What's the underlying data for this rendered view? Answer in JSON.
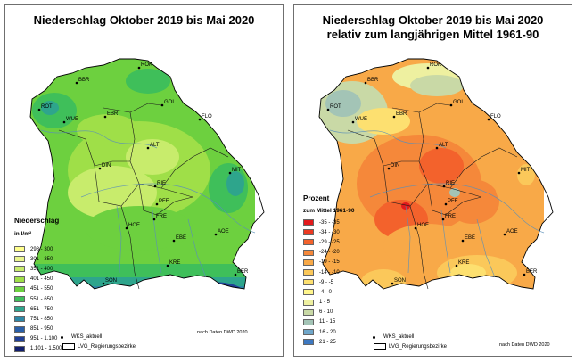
{
  "left_map": {
    "title": "Niederschlag Oktober 2019 bis Mai 2020",
    "legend_title": "Niederschlag",
    "legend_unit": "in l/m²",
    "legend": [
      {
        "label": "298 - 300",
        "color": "#ffff8c"
      },
      {
        "label": "301 - 350",
        "color": "#e9f58c"
      },
      {
        "label": "351 - 400",
        "color": "#c8ec6c"
      },
      {
        "label": "401 - 450",
        "color": "#9fdf48"
      },
      {
        "label": "451 - 550",
        "color": "#6dd03f"
      },
      {
        "label": "551 - 650",
        "color": "#3fbf5a"
      },
      {
        "label": "651 - 750",
        "color": "#2ea58c"
      },
      {
        "label": "751 - 850",
        "color": "#2d87a6"
      },
      {
        "label": "851 - 950",
        "color": "#2a5fa8"
      },
      {
        "label": "951 - 1.100",
        "color": "#213f97"
      },
      {
        "label": "1.101 - 1.500",
        "color": "#121f6e"
      }
    ],
    "station_label": "WKS_aktuell",
    "boundary_label": "LVG_Regierungsbezirke",
    "credit": "nach Daten DWD 2020"
  },
  "right_map": {
    "title_line1": "Niederschlag Oktober 2019 bis Mai 2020",
    "title_line2": "relativ zum langjährigen Mittel 1961-90",
    "legend_title": "Prozent",
    "legend_unit": "zum Mittel 1961-90",
    "legend": [
      {
        "label": "-35 - -35",
        "color": "#e31a1c"
      },
      {
        "label": "-34 - -30",
        "color": "#ec3a22"
      },
      {
        "label": "-29 - -25",
        "color": "#f3622c"
      },
      {
        "label": "-24 - -20",
        "color": "#f5883a"
      },
      {
        "label": "-19 - -15",
        "color": "#f8a948"
      },
      {
        "label": "-14 - -10",
        "color": "#fbc85a"
      },
      {
        "label": "-9 - -5",
        "color": "#fde070"
      },
      {
        "label": "-4 - 0",
        "color": "#fff58c"
      },
      {
        "label": "1 - 5",
        "color": "#eef0a0"
      },
      {
        "label": "6 - 10",
        "color": "#c9d9a6"
      },
      {
        "label": "11 - 15",
        "color": "#a3c4b6"
      },
      {
        "label": "16 - 20",
        "color": "#6fa6c9"
      },
      {
        "label": "21 - 25",
        "color": "#3d78c0"
      }
    ],
    "station_label": "WKS_aktuell",
    "boundary_label": "LVG_Regierungsbezirke",
    "credit": "nach Daten DWD 2020"
  },
  "stations": [
    {
      "code": "ROK"
    },
    {
      "code": "BBR"
    },
    {
      "code": "ROT"
    },
    {
      "code": "WUE"
    },
    {
      "code": "EBR"
    },
    {
      "code": "GOL"
    },
    {
      "code": "FLO"
    },
    {
      "code": "ALT"
    },
    {
      "code": "DIN"
    },
    {
      "code": "MIT"
    },
    {
      "code": "RIE"
    },
    {
      "code": "PFE"
    },
    {
      "code": "FRE"
    },
    {
      "code": "HOE"
    },
    {
      "code": "EBE"
    },
    {
      "code": "AOE"
    },
    {
      "code": "KRE"
    },
    {
      "code": "SON"
    },
    {
      "code": "BER"
    }
  ]
}
